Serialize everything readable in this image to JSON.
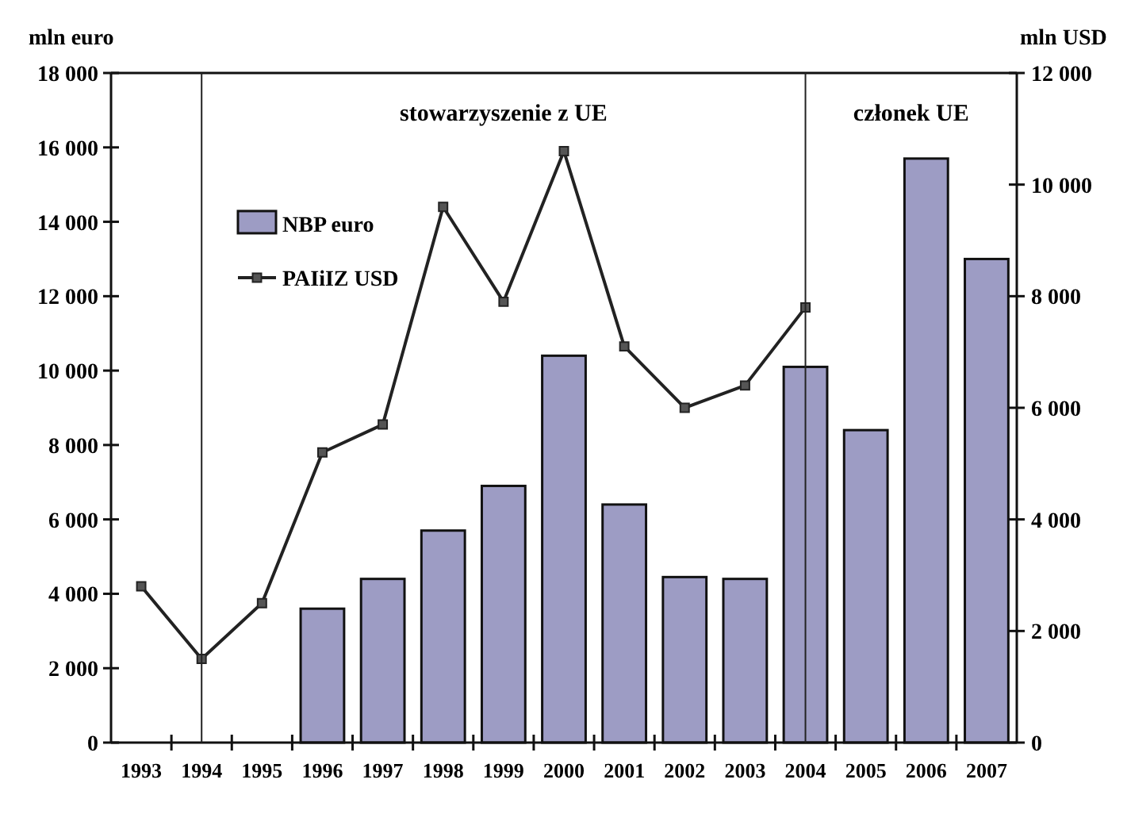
{
  "chart_data": {
    "type": "bar",
    "categories": [
      "1993",
      "1994",
      "1995",
      "1996",
      "1997",
      "1998",
      "1999",
      "2000",
      "2001",
      "2002",
      "2003",
      "2004",
      "2005",
      "2006",
      "2007"
    ],
    "ylabel": "mln euro",
    "y2label": "mln USD",
    "ylim": [
      0,
      18000
    ],
    "yticks": [
      {
        "value": 0,
        "label": "0"
      },
      {
        "value": 2000,
        "label": "2 000"
      },
      {
        "value": 4000,
        "label": "4 000"
      },
      {
        "value": 6000,
        "label": "6 000"
      },
      {
        "value": 8000,
        "label": "8 000"
      },
      {
        "value": 10000,
        "label": "10 000"
      },
      {
        "value": 12000,
        "label": "12 000"
      },
      {
        "value": 14000,
        "label": "14 000"
      },
      {
        "value": 16000,
        "label": "16 000"
      },
      {
        "value": 18000,
        "label": "18 000"
      }
    ],
    "y2lim": [
      0,
      12000
    ],
    "y2ticks": [
      {
        "value": 0,
        "label": "0"
      },
      {
        "value": 2000,
        "label": "2 000"
      },
      {
        "value": 4000,
        "label": "4 000"
      },
      {
        "value": 6000,
        "label": "6 000"
      },
      {
        "value": 8000,
        "label": "8 000"
      },
      {
        "value": 10000,
        "label": "10 000"
      },
      {
        "value": 12000,
        "label": "12 000"
      }
    ],
    "series": [
      {
        "name": "NBP euro",
        "color": "#9d9cc4",
        "values": [
          null,
          null,
          null,
          3600,
          4400,
          5700,
          6900,
          10400,
          6400,
          4450,
          4400,
          10100,
          8400,
          15700,
          13000
        ]
      },
      {
        "name": "PAIiIZ USD",
        "type": "line",
        "axis": "y2",
        "color": "#222222",
        "marker": "square",
        "values": [
          2800,
          1500,
          2500,
          5200,
          5700,
          9600,
          7900,
          10600,
          7100,
          6000,
          6400,
          7800,
          null,
          null,
          null
        ]
      }
    ],
    "ref_lines": [
      {
        "axis": "x",
        "value": "1994",
        "color": "#222222"
      },
      {
        "axis": "x",
        "value": "2004",
        "color": "#222222"
      }
    ],
    "annotations": [
      "stowarzyszenie z UE",
      "członek UE"
    ],
    "legend": "top left"
  }
}
